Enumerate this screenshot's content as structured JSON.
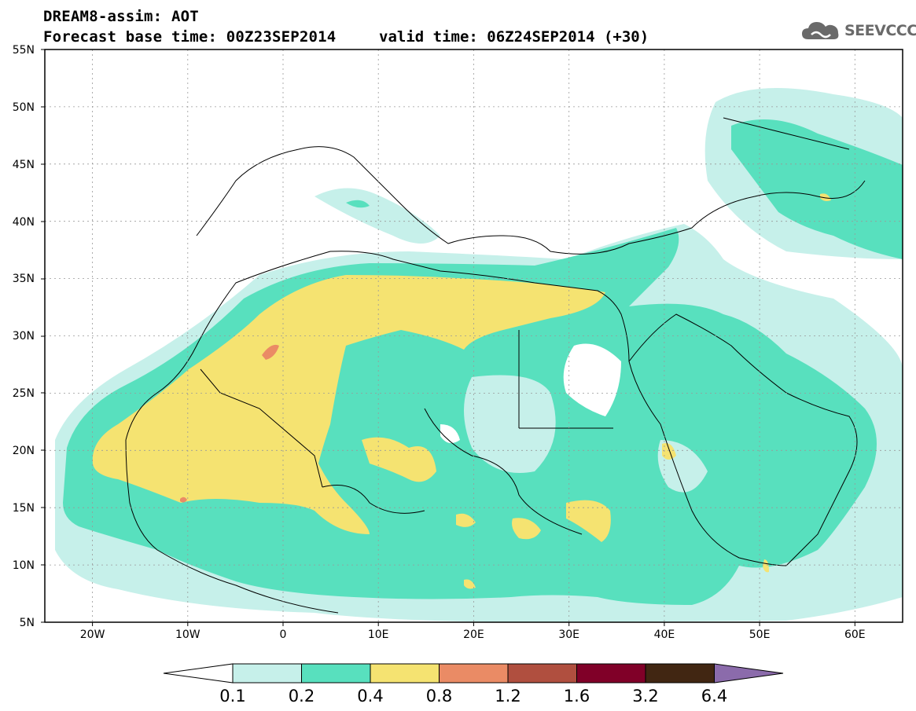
{
  "header": {
    "model": "DREAM8-assim: AOT",
    "base_time": "Forecast base time: 00Z23SEP2014",
    "valid_time": "valid time: 06Z24SEP2014 (+30)"
  },
  "logo": {
    "text": "SEEVCCC",
    "icon": "cloud-icon"
  },
  "map": {
    "lon_range": [
      -25,
      65
    ],
    "lat_range": [
      5,
      55
    ],
    "lat_ticks": [
      "5N",
      "10N",
      "15N",
      "20N",
      "25N",
      "30N",
      "35N",
      "40N",
      "45N",
      "50N",
      "55N"
    ],
    "lon_ticks": [
      "20W",
      "10W",
      "0",
      "10E",
      "20E",
      "30E",
      "40E",
      "50E",
      "60E"
    ],
    "gridlines": true
  },
  "colorbar": {
    "levels": [
      "0.1",
      "0.2",
      "0.4",
      "0.8",
      "1.2",
      "1.6",
      "3.2",
      "6.4"
    ],
    "colors": [
      "#ffffff",
      "#c6f0ea",
      "#58e0be",
      "#f5e371",
      "#ea8b65",
      "#b04f3f",
      "#800028",
      "#412612",
      "#8b6bab"
    ]
  }
}
